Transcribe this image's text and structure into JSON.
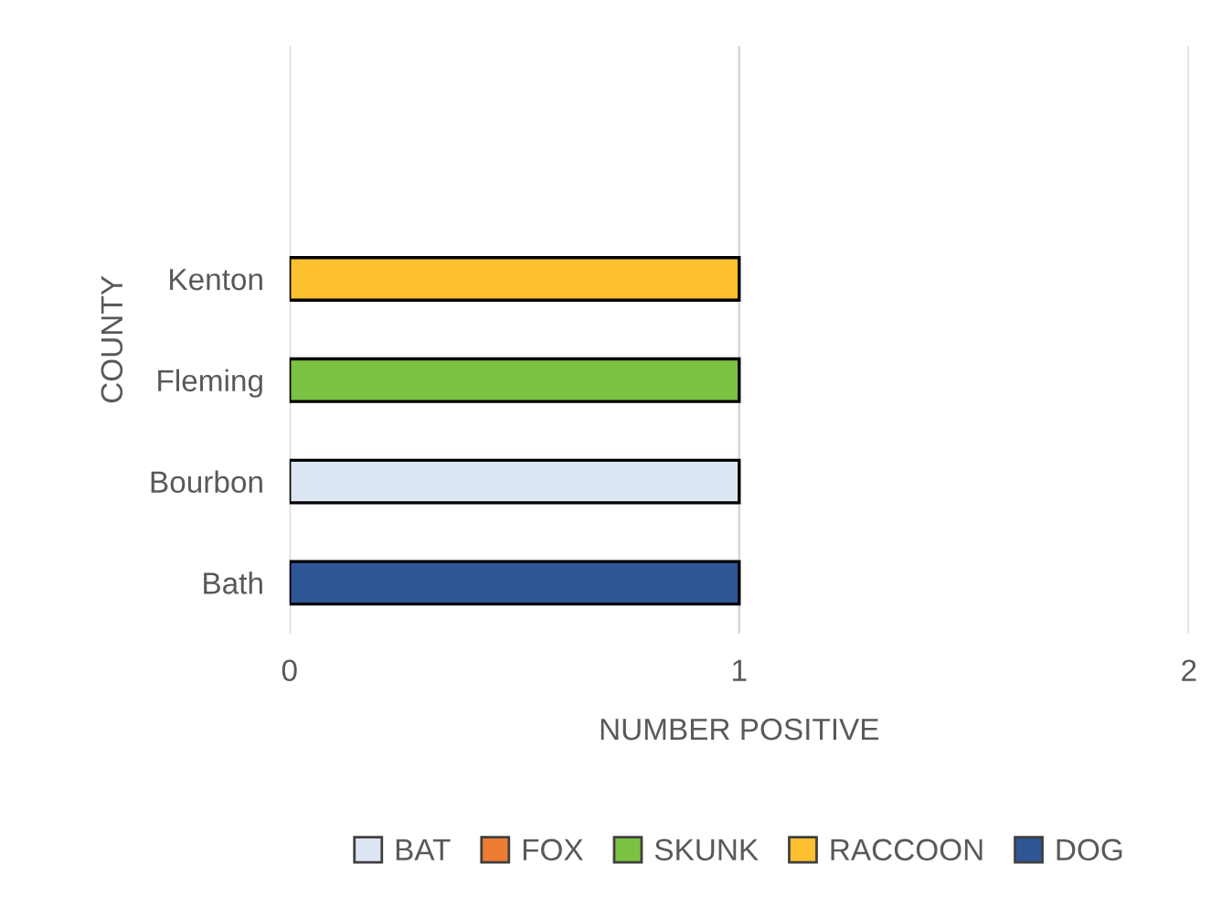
{
  "chart_data": {
    "type": "bar",
    "orientation": "horizontal",
    "xlabel": "NUMBER POSITIVE",
    "ylabel": "COUNTY",
    "categories": [
      "Kenton",
      "Fleming",
      "Bourbon",
      "Bath"
    ],
    "series": [
      {
        "name": "BAT",
        "color": "#dce6f2",
        "values": [
          null,
          null,
          1,
          null
        ]
      },
      {
        "name": "FOX",
        "color": "#ed7d31",
        "values": [
          null,
          null,
          null,
          null
        ]
      },
      {
        "name": "SKUNK",
        "color": "#7cc242",
        "values": [
          null,
          1,
          null,
          null
        ]
      },
      {
        "name": "RACCOON",
        "color": "#fdc02f",
        "values": [
          1,
          null,
          null,
          null
        ]
      },
      {
        "name": "DOG",
        "color": "#2f5597",
        "values": [
          null,
          null,
          null,
          1
        ]
      }
    ],
    "xlim": [
      0,
      2
    ],
    "xticks": [
      0,
      1,
      2
    ],
    "grid": "x",
    "legend": "bottom"
  }
}
